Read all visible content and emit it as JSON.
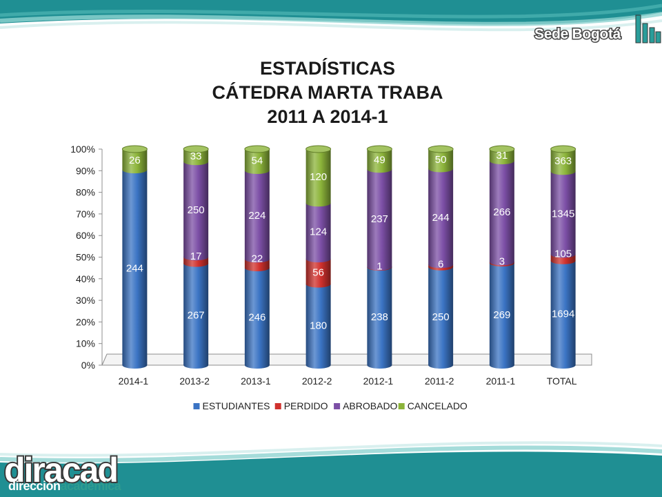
{
  "header": {
    "brand": "Sede Bogotá"
  },
  "footer": {
    "logo_main": "dir",
    "logo_main_b": "acad",
    "logo_sub_a": "dirección",
    "logo_sub_b": "académica"
  },
  "colors": {
    "estudiantes": "#3b74c4",
    "perdido": "#d0312d",
    "abrobado": "#7c4fa6",
    "cancelado": "#8cb43a",
    "teal": "#2a9d9a"
  },
  "chart_data": {
    "type": "bar",
    "stacking": "percent",
    "title": [
      "ESTADÍSTICAS",
      "CÁTEDRA MARTA TRABA",
      "2011 A 2014-1"
    ],
    "categories": [
      "2014-1",
      "2013-2",
      "2013-1",
      "2012-2",
      "2012-1",
      "2011-2",
      "2011-1",
      "TOTAL"
    ],
    "series": [
      {
        "name": "ESTUDIANTES",
        "values": [
          244,
          267,
          246,
          180,
          238,
          250,
          269,
          1694
        ]
      },
      {
        "name": "PERDIDO",
        "values": [
          0,
          17,
          22,
          56,
          1,
          6,
          3,
          105
        ]
      },
      {
        "name": "ABROBADO",
        "values": [
          0,
          250,
          224,
          124,
          237,
          244,
          266,
          1345
        ]
      },
      {
        "name": "CANCELADO",
        "values": [
          26,
          33,
          54,
          120,
          49,
          50,
          31,
          363
        ]
      }
    ],
    "y_ticks": [
      "0%",
      "10%",
      "20%",
      "30%",
      "40%",
      "50%",
      "60%",
      "70%",
      "80%",
      "90%",
      "100%"
    ],
    "ylim": [
      0,
      100
    ],
    "legend": "bottom",
    "grid": false
  }
}
